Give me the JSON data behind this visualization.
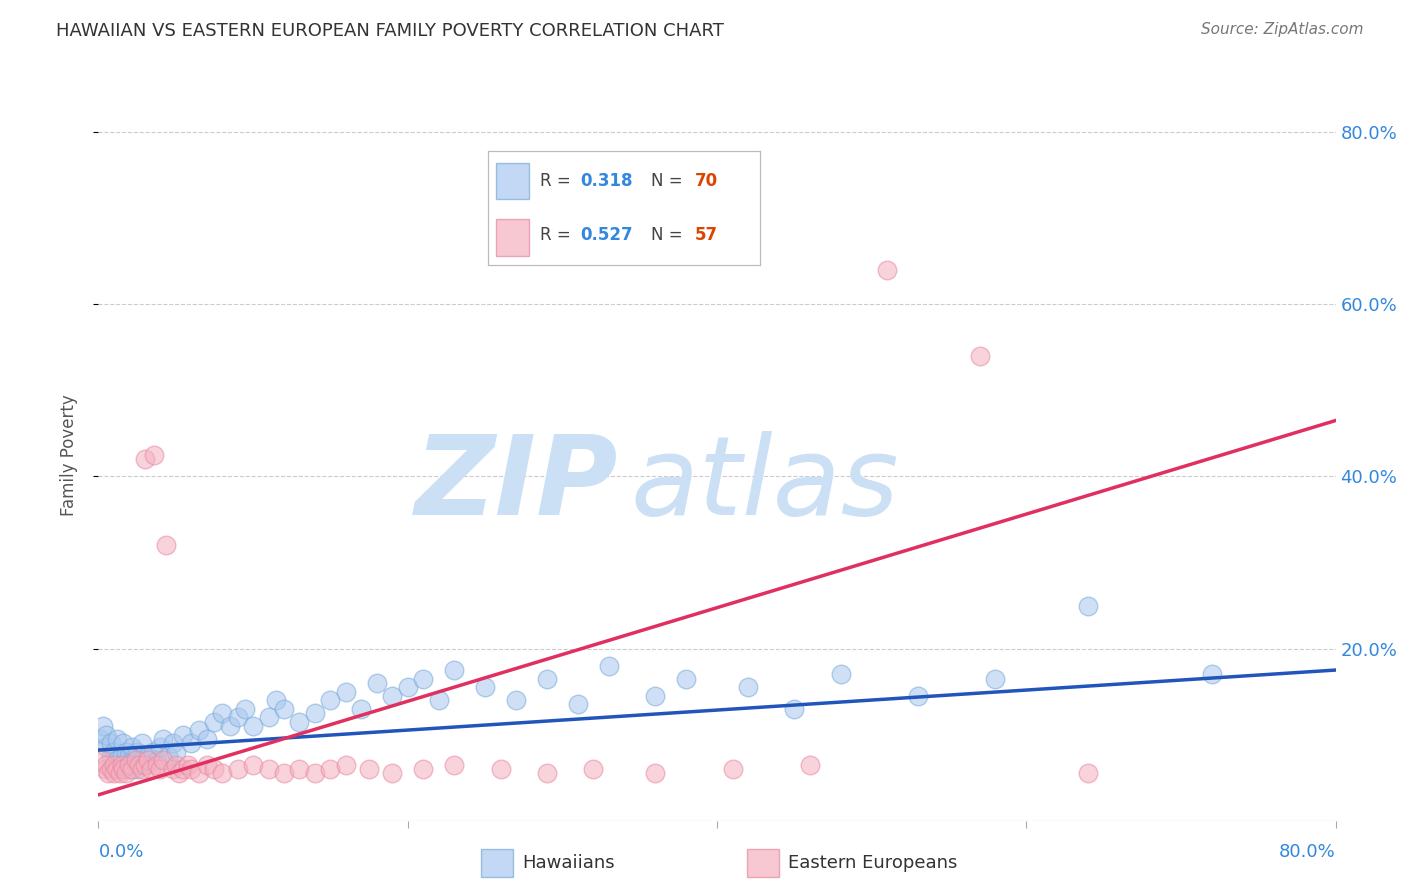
{
  "title": "HAWAIIAN VS EASTERN EUROPEAN FAMILY POVERTY CORRELATION CHART",
  "source": "Source: ZipAtlas.com",
  "ylabel": "Family Poverty",
  "ytick_labels": [
    "20.0%",
    "40.0%",
    "60.0%",
    "80.0%"
  ],
  "ytick_values": [
    0.2,
    0.4,
    0.6,
    0.8
  ],
  "xlim": [
    0.0,
    0.8
  ],
  "ylim": [
    0.0,
    0.85
  ],
  "hawaiians": {
    "color": "#a8c8f0",
    "edge_color": "#7aaad8",
    "line_color": "#2255bb",
    "x": [
      0.001,
      0.003,
      0.005,
      0.005,
      0.008,
      0.008,
      0.01,
      0.01,
      0.012,
      0.012,
      0.015,
      0.015,
      0.016,
      0.018,
      0.018,
      0.02,
      0.02,
      0.022,
      0.022,
      0.025,
      0.025,
      0.028,
      0.028,
      0.03,
      0.032,
      0.035,
      0.038,
      0.04,
      0.042,
      0.045,
      0.048,
      0.05,
      0.055,
      0.06,
      0.065,
      0.07,
      0.075,
      0.08,
      0.085,
      0.09,
      0.095,
      0.1,
      0.11,
      0.115,
      0.12,
      0.13,
      0.14,
      0.15,
      0.16,
      0.17,
      0.18,
      0.19,
      0.2,
      0.21,
      0.22,
      0.23,
      0.25,
      0.27,
      0.29,
      0.31,
      0.33,
      0.36,
      0.38,
      0.42,
      0.45,
      0.48,
      0.53,
      0.58,
      0.64,
      0.72
    ],
    "y": [
      0.095,
      0.11,
      0.085,
      0.1,
      0.075,
      0.09,
      0.065,
      0.08,
      0.07,
      0.095,
      0.06,
      0.075,
      0.09,
      0.065,
      0.08,
      0.06,
      0.075,
      0.07,
      0.085,
      0.06,
      0.08,
      0.07,
      0.09,
      0.065,
      0.075,
      0.08,
      0.07,
      0.085,
      0.095,
      0.075,
      0.09,
      0.08,
      0.1,
      0.09,
      0.105,
      0.095,
      0.115,
      0.125,
      0.11,
      0.12,
      0.13,
      0.11,
      0.12,
      0.14,
      0.13,
      0.115,
      0.125,
      0.14,
      0.15,
      0.13,
      0.16,
      0.145,
      0.155,
      0.165,
      0.14,
      0.175,
      0.155,
      0.14,
      0.165,
      0.135,
      0.18,
      0.145,
      0.165,
      0.155,
      0.13,
      0.17,
      0.145,
      0.165,
      0.25,
      0.17
    ],
    "trend_x": [
      0.0,
      0.8
    ],
    "trend_y": [
      0.082,
      0.175
    ]
  },
  "eastern_europeans": {
    "color": "#f4b0c0",
    "edge_color": "#e888a0",
    "line_color": "#e03060",
    "x": [
      0.002,
      0.004,
      0.005,
      0.006,
      0.008,
      0.01,
      0.01,
      0.012,
      0.014,
      0.015,
      0.016,
      0.018,
      0.02,
      0.022,
      0.024,
      0.026,
      0.028,
      0.03,
      0.03,
      0.032,
      0.034,
      0.036,
      0.038,
      0.04,
      0.042,
      0.044,
      0.048,
      0.05,
      0.052,
      0.055,
      0.058,
      0.06,
      0.065,
      0.07,
      0.075,
      0.08,
      0.09,
      0.1,
      0.11,
      0.12,
      0.13,
      0.14,
      0.15,
      0.16,
      0.175,
      0.19,
      0.21,
      0.23,
      0.26,
      0.29,
      0.32,
      0.36,
      0.41,
      0.46,
      0.51,
      0.57,
      0.64
    ],
    "y": [
      0.07,
      0.06,
      0.065,
      0.055,
      0.06,
      0.065,
      0.055,
      0.06,
      0.055,
      0.065,
      0.06,
      0.055,
      0.065,
      0.06,
      0.07,
      0.065,
      0.06,
      0.065,
      0.42,
      0.07,
      0.06,
      0.425,
      0.065,
      0.06,
      0.07,
      0.32,
      0.06,
      0.065,
      0.055,
      0.06,
      0.065,
      0.06,
      0.055,
      0.065,
      0.06,
      0.055,
      0.06,
      0.065,
      0.06,
      0.055,
      0.06,
      0.055,
      0.06,
      0.065,
      0.06,
      0.055,
      0.06,
      0.065,
      0.06,
      0.055,
      0.06,
      0.055,
      0.06,
      0.065,
      0.64,
      0.54,
      0.055
    ],
    "trend_x": [
      0.0,
      0.8
    ],
    "trend_y": [
      0.03,
      0.465
    ]
  },
  "background_color": "#ffffff",
  "grid_color": "#cccccc",
  "title_color": "#333333",
  "axis_color": "#3388dd",
  "watermark_zip": "ZIP",
  "watermark_atlas": "atlas",
  "watermark_color": "#cce0f5"
}
